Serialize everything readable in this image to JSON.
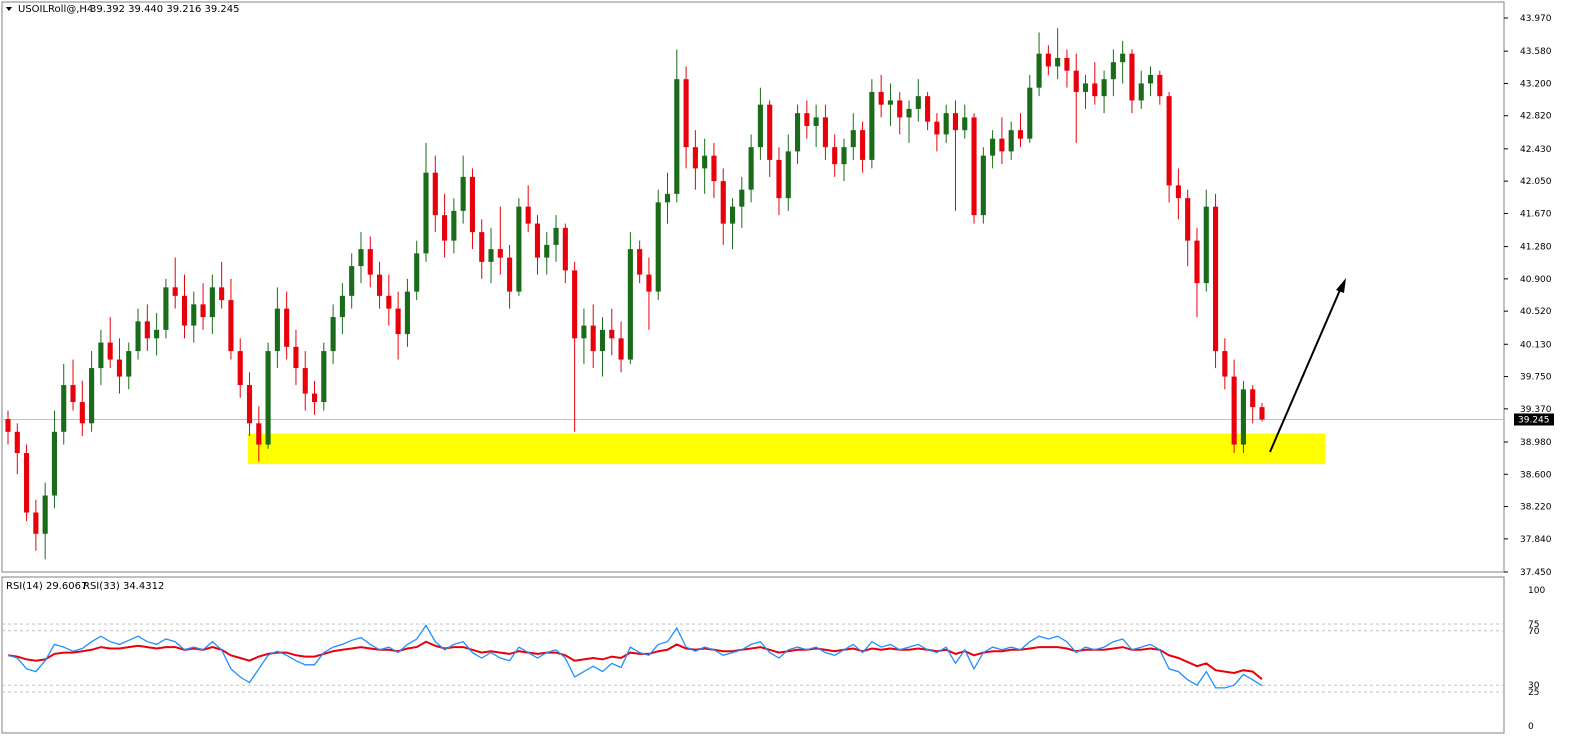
{
  "header": {
    "symbol": "USOILRoll@,H4",
    "ohlc": "39.392 39.440 39.216 39.245"
  },
  "colors": {
    "bull": "#1a6b1a",
    "bear": "#e8000b",
    "zone": "#ffff00",
    "rsi14": "#1f8fff",
    "rsi33": "#e8000b",
    "grid": "#c0c0c0",
    "price_label_bg": "#000000"
  },
  "chart_data": [
    {
      "type": "candlestick",
      "title": "USOILRoll@,H4",
      "y_ticks": [
        "43.970",
        "43.580",
        "43.200",
        "42.820",
        "42.430",
        "42.050",
        "41.670",
        "41.280",
        "40.900",
        "40.520",
        "40.130",
        "39.750",
        "39.370",
        "38.980",
        "38.600",
        "38.220",
        "37.840",
        "37.450"
      ],
      "ylim": [
        37.45,
        43.97
      ],
      "last_price": "39.245",
      "ohlc": [
        [
          39.25,
          39.35,
          38.95,
          39.1
        ],
        [
          39.1,
          39.2,
          38.6,
          38.85
        ],
        [
          38.85,
          38.95,
          38.05,
          38.15
        ],
        [
          38.15,
          38.3,
          37.7,
          37.9
        ],
        [
          37.9,
          38.5,
          37.6,
          38.35
        ],
        [
          38.35,
          39.35,
          38.2,
          39.1
        ],
        [
          39.1,
          39.9,
          38.95,
          39.65
        ],
        [
          39.65,
          39.95,
          39.35,
          39.45
        ],
        [
          39.45,
          39.7,
          39.05,
          39.2
        ],
        [
          39.2,
          40.05,
          39.1,
          39.85
        ],
        [
          39.85,
          40.3,
          39.65,
          40.15
        ],
        [
          40.15,
          40.45,
          39.85,
          39.95
        ],
        [
          39.95,
          40.2,
          39.55,
          39.75
        ],
        [
          39.75,
          40.15,
          39.6,
          40.05
        ],
        [
          40.05,
          40.55,
          39.95,
          40.4
        ],
        [
          40.4,
          40.6,
          40.05,
          40.2
        ],
        [
          40.2,
          40.5,
          40.0,
          40.3
        ],
        [
          40.3,
          40.9,
          40.2,
          40.8
        ],
        [
          40.8,
          41.15,
          40.55,
          40.7
        ],
        [
          40.7,
          40.95,
          40.2,
          40.35
        ],
        [
          40.35,
          40.75,
          40.15,
          40.6
        ],
        [
          40.6,
          40.85,
          40.3,
          40.45
        ],
        [
          40.45,
          40.95,
          40.25,
          40.8
        ],
        [
          40.8,
          41.1,
          40.55,
          40.65
        ],
        [
          40.65,
          40.9,
          39.95,
          40.05
        ],
        [
          40.05,
          40.2,
          39.5,
          39.65
        ],
        [
          39.65,
          39.8,
          39.05,
          39.2
        ],
        [
          39.2,
          39.4,
          38.75,
          38.95
        ],
        [
          38.95,
          40.15,
          38.9,
          40.05
        ],
        [
          40.05,
          40.8,
          39.85,
          40.55
        ],
        [
          40.55,
          40.75,
          39.95,
          40.1
        ],
        [
          40.1,
          40.3,
          39.65,
          39.85
        ],
        [
          39.85,
          40.05,
          39.35,
          39.55
        ],
        [
          39.55,
          39.7,
          39.3,
          39.45
        ],
        [
          39.45,
          40.15,
          39.35,
          40.05
        ],
        [
          40.05,
          40.6,
          39.9,
          40.45
        ],
        [
          40.45,
          40.85,
          40.25,
          40.7
        ],
        [
          40.7,
          41.2,
          40.55,
          41.05
        ],
        [
          41.05,
          41.45,
          40.85,
          41.25
        ],
        [
          41.25,
          41.4,
          40.8,
          40.95
        ],
        [
          40.95,
          41.1,
          40.55,
          40.7
        ],
        [
          40.7,
          40.95,
          40.35,
          40.55
        ],
        [
          40.55,
          40.75,
          39.95,
          40.25
        ],
        [
          40.25,
          40.9,
          40.1,
          40.75
        ],
        [
          40.75,
          41.35,
          40.65,
          41.2
        ],
        [
          41.2,
          42.5,
          41.1,
          42.15
        ],
        [
          42.15,
          42.35,
          41.45,
          41.65
        ],
        [
          41.65,
          41.9,
          41.15,
          41.35
        ],
        [
          41.35,
          41.85,
          41.2,
          41.7
        ],
        [
          41.7,
          42.35,
          41.55,
          42.1
        ],
        [
          42.1,
          42.2,
          41.25,
          41.45
        ],
        [
          41.45,
          41.6,
          40.9,
          41.1
        ],
        [
          41.1,
          41.5,
          40.85,
          41.25
        ],
        [
          41.25,
          41.75,
          40.95,
          41.15
        ],
        [
          41.15,
          41.3,
          40.55,
          40.75
        ],
        [
          40.75,
          41.85,
          40.7,
          41.75
        ],
        [
          41.75,
          42.0,
          41.45,
          41.55
        ],
        [
          41.55,
          41.65,
          40.95,
          41.15
        ],
        [
          41.15,
          41.45,
          40.95,
          41.3
        ],
        [
          41.3,
          41.65,
          41.1,
          41.5
        ],
        [
          41.5,
          41.55,
          40.85,
          41.0
        ],
        [
          41.0,
          41.1,
          39.1,
          40.2
        ],
        [
          40.2,
          40.55,
          39.9,
          40.35
        ],
        [
          40.35,
          40.6,
          39.85,
          40.05
        ],
        [
          40.05,
          40.45,
          39.75,
          40.3
        ],
        [
          40.3,
          40.55,
          40.0,
          40.2
        ],
        [
          40.2,
          40.4,
          39.8,
          39.95
        ],
        [
          39.95,
          41.45,
          39.9,
          41.25
        ],
        [
          41.25,
          41.35,
          40.85,
          40.95
        ],
        [
          40.95,
          41.15,
          40.3,
          40.75
        ],
        [
          40.75,
          41.95,
          40.65,
          41.8
        ],
        [
          41.8,
          42.15,
          41.55,
          41.9
        ],
        [
          41.9,
          43.6,
          41.8,
          43.25
        ],
        [
          43.25,
          43.4,
          42.2,
          42.45
        ],
        [
          42.45,
          42.65,
          41.95,
          42.2
        ],
        [
          42.2,
          42.55,
          41.9,
          42.35
        ],
        [
          42.35,
          42.5,
          41.85,
          42.05
        ],
        [
          42.05,
          42.2,
          41.3,
          41.55
        ],
        [
          41.55,
          41.85,
          41.25,
          41.75
        ],
        [
          41.75,
          42.1,
          41.5,
          41.95
        ],
        [
          41.95,
          42.6,
          41.8,
          42.45
        ],
        [
          42.45,
          43.15,
          42.3,
          42.95
        ],
        [
          42.95,
          43.0,
          42.1,
          42.3
        ],
        [
          42.3,
          42.45,
          41.65,
          41.85
        ],
        [
          41.85,
          42.6,
          41.7,
          42.4
        ],
        [
          42.4,
          42.95,
          42.25,
          42.85
        ],
        [
          42.85,
          43.0,
          42.55,
          42.7
        ],
        [
          42.7,
          42.95,
          42.45,
          42.8
        ],
        [
          42.8,
          42.95,
          42.3,
          42.45
        ],
        [
          42.45,
          42.6,
          42.1,
          42.25
        ],
        [
          42.25,
          42.55,
          42.05,
          42.45
        ],
        [
          42.45,
          42.85,
          42.3,
          42.65
        ],
        [
          42.65,
          42.75,
          42.15,
          42.3
        ],
        [
          42.3,
          43.25,
          42.2,
          43.1
        ],
        [
          43.1,
          43.3,
          42.8,
          42.95
        ],
        [
          42.95,
          43.2,
          42.7,
          43.0
        ],
        [
          43.0,
          43.1,
          42.6,
          42.8
        ],
        [
          42.8,
          43.0,
          42.5,
          42.9
        ],
        [
          42.9,
          43.25,
          42.75,
          43.05
        ],
        [
          43.05,
          43.1,
          42.65,
          42.75
        ],
        [
          42.75,
          42.85,
          42.4,
          42.6
        ],
        [
          42.6,
          42.95,
          42.5,
          42.85
        ],
        [
          42.85,
          43.0,
          41.7,
          42.65
        ],
        [
          42.65,
          42.95,
          42.55,
          42.8
        ],
        [
          42.8,
          42.85,
          41.55,
          41.65
        ],
        [
          41.65,
          42.45,
          41.55,
          42.35
        ],
        [
          42.35,
          42.65,
          42.2,
          42.55
        ],
        [
          42.55,
          42.8,
          42.25,
          42.4
        ],
        [
          42.4,
          42.75,
          42.3,
          42.65
        ],
        [
          42.65,
          42.85,
          42.45,
          42.55
        ],
        [
          42.55,
          43.3,
          42.5,
          43.15
        ],
        [
          43.15,
          43.8,
          43.05,
          43.55
        ],
        [
          43.55,
          43.65,
          43.3,
          43.4
        ],
        [
          43.4,
          43.85,
          43.25,
          43.5
        ],
        [
          43.5,
          43.6,
          43.15,
          43.35
        ],
        [
          43.35,
          43.55,
          42.5,
          43.1
        ],
        [
          43.1,
          43.3,
          42.9,
          43.2
        ],
        [
          43.2,
          43.45,
          42.95,
          43.05
        ],
        [
          43.05,
          43.35,
          42.85,
          43.25
        ],
        [
          43.25,
          43.6,
          43.05,
          43.45
        ],
        [
          43.45,
          43.7,
          43.2,
          43.55
        ],
        [
          43.55,
          43.6,
          42.85,
          43.0
        ],
        [
          43.0,
          43.35,
          42.9,
          43.2
        ],
        [
          43.2,
          43.4,
          43.05,
          43.3
        ],
        [
          43.3,
          43.35,
          42.95,
          43.05
        ],
        [
          43.05,
          43.1,
          41.8,
          42.0
        ],
        [
          42.0,
          42.2,
          41.6,
          41.85
        ],
        [
          41.85,
          41.95,
          41.05,
          41.35
        ],
        [
          41.35,
          41.5,
          40.45,
          40.85
        ],
        [
          40.85,
          41.95,
          40.75,
          41.75
        ],
        [
          41.75,
          41.9,
          39.85,
          40.05
        ],
        [
          40.05,
          40.2,
          39.6,
          39.75
        ],
        [
          39.75,
          39.95,
          38.85,
          38.95
        ],
        [
          38.95,
          39.7,
          38.85,
          39.6
        ],
        [
          39.6,
          39.65,
          39.2,
          39.39
        ],
        [
          39.39,
          39.44,
          39.22,
          39.245
        ]
      ],
      "rsi": {
        "label14": "RSI(14) 29.6067",
        "label33": "RSI(33) 34.4312",
        "levels": [
          "100",
          "75",
          "70",
          "30",
          "25",
          "0"
        ],
        "ylim": [
          0,
          100
        ],
        "rsi14": [
          52,
          50,
          42,
          40,
          48,
          60,
          58,
          55,
          57,
          62,
          66,
          62,
          60,
          63,
          66,
          62,
          60,
          64,
          62,
          56,
          58,
          56,
          62,
          56,
          42,
          36,
          32,
          42,
          52,
          55,
          52,
          48,
          45,
          45,
          54,
          58,
          60,
          63,
          65,
          60,
          56,
          58,
          54,
          60,
          64,
          74,
          62,
          56,
          60,
          62,
          54,
          50,
          54,
          50,
          48,
          58,
          54,
          50,
          54,
          56,
          50,
          36,
          40,
          44,
          40,
          46,
          43,
          58,
          54,
          52,
          60,
          62,
          72,
          58,
          55,
          58,
          56,
          52,
          54,
          56,
          60,
          62,
          54,
          50,
          56,
          58,
          56,
          58,
          54,
          52,
          56,
          60,
          54,
          62,
          58,
          60,
          56,
          58,
          60,
          56,
          54,
          58,
          46,
          56,
          42,
          54,
          58,
          56,
          58,
          56,
          62,
          66,
          64,
          66,
          62,
          54,
          58,
          56,
          58,
          62,
          64,
          56,
          58,
          60,
          56,
          42,
          40,
          34,
          30,
          40,
          28,
          28,
          30,
          38,
          34,
          29.6
        ],
        "rsi33": [
          52,
          51,
          49,
          48,
          49,
          53,
          54,
          54,
          55,
          56,
          58,
          57,
          57,
          58,
          59,
          58,
          57,
          58,
          58,
          56,
          57,
          56,
          58,
          56,
          52,
          50,
          48,
          51,
          53,
          54,
          54,
          52,
          51,
          51,
          53,
          55,
          56,
          57,
          58,
          57,
          56,
          56,
          55,
          57,
          58,
          62,
          59,
          57,
          58,
          58,
          56,
          54,
          55,
          54,
          53,
          55,
          54,
          53,
          54,
          54,
          52,
          48,
          49,
          50,
          49,
          51,
          50,
          54,
          53,
          53,
          55,
          56,
          60,
          57,
          56,
          57,
          56,
          55,
          55,
          56,
          57,
          58,
          56,
          54,
          55,
          56,
          56,
          57,
          56,
          55,
          56,
          57,
          55,
          57,
          56,
          57,
          56,
          56,
          57,
          56,
          55,
          56,
          53,
          55,
          52,
          54,
          55,
          55,
          56,
          56,
          57,
          58,
          58,
          58,
          57,
          55,
          56,
          56,
          56,
          57,
          58,
          56,
          56,
          57,
          56,
          52,
          50,
          47,
          44,
          46,
          41,
          40,
          39,
          41,
          40,
          34.4
        ]
      }
    }
  ]
}
